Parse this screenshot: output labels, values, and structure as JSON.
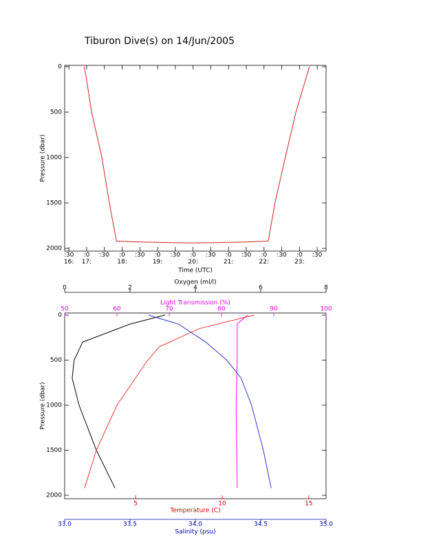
{
  "charts": [
    {
      "type": "line",
      "title": "Tiburon Dive(s) on 14/Jun/2005",
      "xlabel": "Time (UTC)",
      "ylabel": "Pressure (dbar)",
      "x": [
        16.93,
        16.98,
        17.14,
        17.43,
        17.64,
        17.84,
        18.5,
        19.5,
        20.0,
        20.5,
        21.5,
        22.12,
        22.31,
        22.6,
        22.9,
        23.28
      ],
      "values": [
        0,
        100,
        500,
        1000,
        1500,
        1920,
        1930,
        1938,
        1940,
        1938,
        1930,
        1920,
        1500,
        1000,
        500,
        0
      ],
      "color": "#cc2222",
      "xlim": [
        16.38,
        23.75
      ],
      "xticks": [
        {
          "value": 16.5,
          "label": ":30\n16:"
        },
        {
          "value": 17,
          "label": ":0\n17:"
        },
        {
          "value": 17.5,
          "label": ":30"
        },
        {
          "value": 18,
          "label": ":0\n18:"
        },
        {
          "value": 18.5,
          "label": ":30"
        },
        {
          "value": 19,
          "label": ":0\n19:"
        },
        {
          "value": 19.5,
          "label": ":30"
        },
        {
          "value": 20,
          "label": ":0\n20:"
        },
        {
          "value": 20.5,
          "label": ":30"
        },
        {
          "value": 21,
          "label": ":0\n21:"
        },
        {
          "value": 21.5,
          "label": ":30"
        },
        {
          "value": 22,
          "label": ":0\n22:"
        },
        {
          "value": 22.5,
          "label": ":30"
        },
        {
          "value": 23,
          "label": ":0\n23:"
        },
        {
          "value": 23.5,
          "label": ":30"
        }
      ],
      "ylim": [
        2030,
        -15
      ],
      "yticks": [
        0,
        500,
        1000,
        1500,
        2000
      ]
    },
    {
      "type": "profile",
      "ylabel": "Pressure (dbar)",
      "ylim": [
        2038,
        -23
      ],
      "yticks": [
        0,
        500,
        1000,
        1500,
        2000
      ],
      "x_axes": [
        {
          "label": "Oxygen (ml/l)",
          "position": "top",
          "color": "#000000",
          "lim": [
            0,
            8
          ],
          "ticks": [
            0,
            2,
            4,
            6,
            8
          ]
        },
        {
          "label": "Light Transmission (%)",
          "position": "top",
          "color": "#dd00dd",
          "lim": [
            50,
            100
          ],
          "ticks": [
            50,
            60,
            70,
            80,
            90,
            100
          ]
        },
        {
          "label": "Temperature (C)",
          "position": "bottom",
          "color": "#cc0000",
          "lim": [
            0.9,
            16
          ],
          "ticks": [
            5,
            10,
            15
          ]
        },
        {
          "label": "Salinity (psu)",
          "position": "bottom",
          "color": "#0000aa",
          "lim": [
            33,
            35
          ],
          "ticks": [
            {
              "value": 33,
              "label": "33.0"
            },
            33.5,
            {
              "value": 34,
              "label": "34.0"
            },
            34.5,
            {
              "value": 35,
              "label": "35.0"
            }
          ]
        }
      ],
      "series": [
        {
          "x_axis": 0,
          "color": "#000000",
          "x": [
            3.07,
            2.0,
            0.55,
            0.29,
            0.23,
            0.44,
            0.97,
            1.54
          ],
          "values": [
            0,
            100,
            300,
            500,
            700,
            1000,
            1500,
            1920
          ]
        },
        {
          "x_axis": 1,
          "color": "#ff00ff",
          "x": [
            85,
            83,
            83,
            82.8,
            83
          ],
          "values": [
            0,
            100,
            500,
            1000,
            1920
          ]
        },
        {
          "x_axis": 2,
          "color": "#ee3333",
          "x": [
            11.85,
            8.68,
            6.38,
            5.7,
            3.92,
            2.73,
            2.05
          ],
          "values": [
            0,
            150,
            350,
            500,
            1000,
            1500,
            1920
          ]
        },
        {
          "x_axis": 3,
          "color": "#3333cc",
          "x": [
            33.64,
            33.87,
            34.08,
            34.24,
            34.35,
            34.43,
            34.52,
            34.58
          ],
          "values": [
            0,
            100,
            300,
            500,
            700,
            1000,
            1500,
            1920
          ]
        }
      ]
    }
  ]
}
